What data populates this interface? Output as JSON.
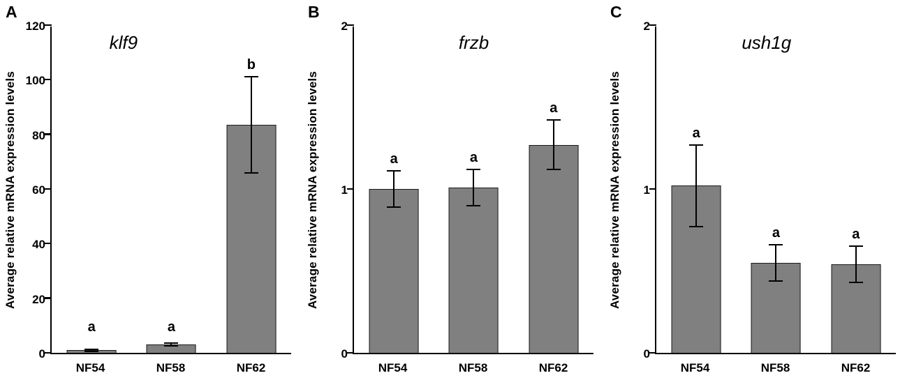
{
  "chart_data": [
    {
      "type": "bar",
      "panel_label": "A",
      "title": "klf9",
      "ylabel": "Average relative mRNA expression levels",
      "xlabel": "",
      "categories": [
        "NF54",
        "NF58",
        "NF62"
      ],
      "values": [
        1.0,
        3.0,
        83.5
      ],
      "errors": [
        0.4,
        0.5,
        17.5
      ],
      "sig_labels": [
        "a",
        "a",
        "b"
      ],
      "ylim": [
        0,
        120
      ],
      "yticks": [
        0,
        20,
        40,
        60,
        80,
        100,
        120
      ],
      "grid": false,
      "legend": false,
      "bar_color": "#808080",
      "title_x_pct": 30
    },
    {
      "type": "bar",
      "panel_label": "B",
      "title": "frzb",
      "ylabel": "Average relative mRNA expression levels",
      "xlabel": "",
      "categories": [
        "NF54",
        "NF58",
        "NF62"
      ],
      "values": [
        1.0,
        1.01,
        1.27
      ],
      "errors": [
        0.11,
        0.11,
        0.15
      ],
      "sig_labels": [
        "a",
        "a",
        "a"
      ],
      "ylim": [
        0,
        2
      ],
      "yticks": [
        0,
        1,
        2
      ],
      "grid": false,
      "legend": false,
      "bar_color": "#808080",
      "title_x_pct": 50
    },
    {
      "type": "bar",
      "panel_label": "C",
      "title": "ush1g",
      "ylabel": "Average relative mRNA expression levels",
      "xlabel": "",
      "categories": [
        "NF54",
        "NF58",
        "NF62"
      ],
      "values": [
        1.02,
        0.55,
        0.54
      ],
      "errors": [
        0.25,
        0.11,
        0.11
      ],
      "sig_labels": [
        "a",
        "a",
        "a"
      ],
      "ylim": [
        0,
        2
      ],
      "yticks": [
        0,
        1,
        2
      ],
      "grid": false,
      "legend": false,
      "bar_color": "#808080",
      "title_x_pct": 46
    }
  ]
}
